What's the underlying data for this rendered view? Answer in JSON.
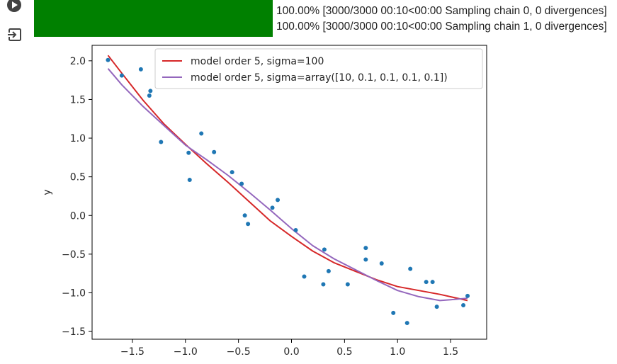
{
  "output": {
    "log_lines": [
      "100.00% [3000/3000 00:10<00:00 Sampling chain 0, 0 divergences]",
      "100.00% [3000/3000 00:10<00:00 Sampling chain 1, 0 divergences]"
    ],
    "progress_color": "#008000"
  },
  "icons": {
    "run": "play-circle-icon",
    "output": "output-redirect-icon"
  },
  "chart_data": {
    "type": "scatter",
    "title": "",
    "xlabel": "",
    "ylabel": "y",
    "xlim": [
      -1.88,
      1.84
    ],
    "ylim": [
      -1.6,
      2.2
    ],
    "xticks": [
      -1.5,
      -1.0,
      -0.5,
      0.0,
      0.5,
      1.0,
      1.5
    ],
    "yticks": [
      -1.5,
      -1.0,
      -0.5,
      0.0,
      0.5,
      1.0,
      1.5,
      2.0
    ],
    "xtick_labels": [
      "−1.5",
      "−1.0",
      "−0.5",
      "0.0",
      "0.5",
      "1.0",
      "1.5"
    ],
    "ytick_labels": [
      "−1.5",
      "−1.0",
      "−0.5",
      "0.0",
      "0.5",
      "1.0",
      "1.5",
      "2.0"
    ],
    "grid": false,
    "legend_position": "top-right",
    "points": {
      "color": "#1f77b4",
      "x": [
        -1.73,
        -1.6,
        -1.42,
        -1.33,
        -1.34,
        -1.23,
        -0.97,
        -0.96,
        -0.85,
        -0.73,
        -0.56,
        -0.47,
        -0.44,
        -0.41,
        -0.18,
        -0.13,
        0.04,
        0.12,
        0.3,
        0.31,
        0.35,
        0.53,
        0.7,
        0.7,
        0.85,
        0.96,
        1.09,
        1.12,
        1.27,
        1.33,
        1.37,
        1.62,
        1.66
      ],
      "y": [
        2.01,
        1.81,
        1.89,
        1.61,
        1.55,
        0.95,
        0.81,
        0.46,
        1.06,
        0.82,
        0.56,
        0.41,
        0.0,
        -0.11,
        0.1,
        0.2,
        -0.19,
        -0.79,
        -0.89,
        -0.44,
        -0.72,
        -0.89,
        -0.42,
        -0.57,
        -0.62,
        -1.26,
        -1.39,
        -0.69,
        -0.86,
        -0.86,
        -1.18,
        -1.16,
        -1.04
      ]
    },
    "series": [
      {
        "name": "model order 5, sigma=100",
        "color": "#d62728",
        "x": [
          -1.73,
          -1.6,
          -1.4,
          -1.2,
          -1.0,
          -0.8,
          -0.6,
          -0.4,
          -0.2,
          0.0,
          0.2,
          0.4,
          0.6,
          0.8,
          1.0,
          1.2,
          1.4,
          1.66
        ],
        "y": [
          2.07,
          1.84,
          1.49,
          1.18,
          0.92,
          0.67,
          0.43,
          0.18,
          -0.07,
          -0.27,
          -0.46,
          -0.61,
          -0.72,
          -0.83,
          -0.92,
          -0.97,
          -1.02,
          -1.1
        ]
      },
      {
        "name": "model order 5, sigma=array([10, 0.1, 0.1, 0.1, 0.1])",
        "color": "#9467bd",
        "x": [
          -1.73,
          -1.6,
          -1.4,
          -1.2,
          -1.0,
          -0.8,
          -0.6,
          -0.4,
          -0.2,
          0.0,
          0.2,
          0.4,
          0.6,
          0.8,
          1.0,
          1.2,
          1.4,
          1.5,
          1.66
        ],
        "y": [
          1.9,
          1.69,
          1.41,
          1.16,
          0.91,
          0.72,
          0.52,
          0.3,
          0.07,
          -0.17,
          -0.39,
          -0.56,
          -0.7,
          -0.84,
          -0.97,
          -1.05,
          -1.1,
          -1.09,
          -1.07
        ]
      }
    ]
  }
}
